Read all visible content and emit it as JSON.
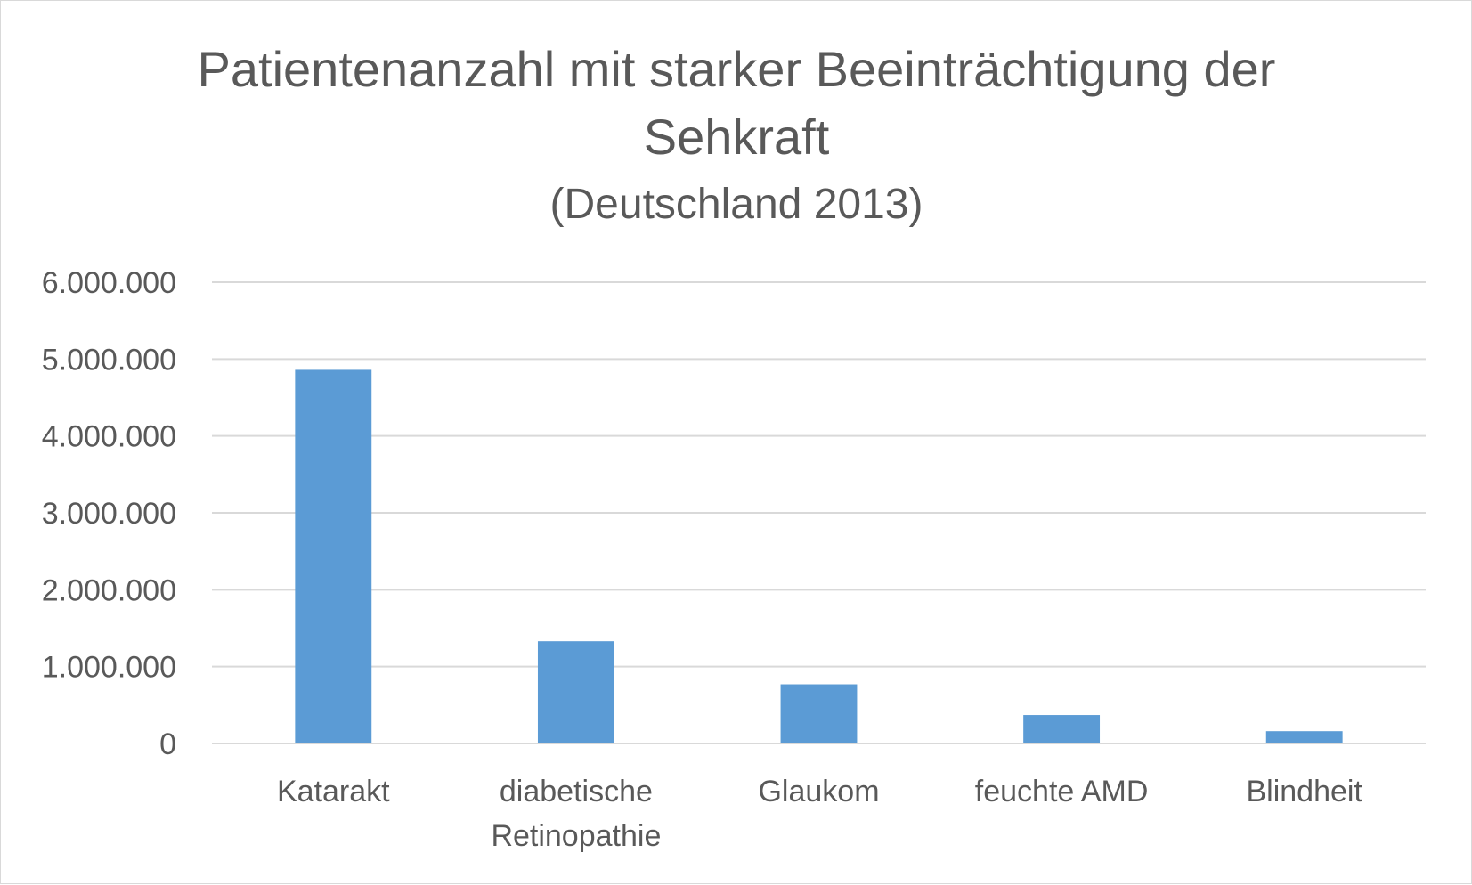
{
  "chart_data": {
    "type": "bar",
    "title_lines": [
      "Patientenanzahl mit starker Beeinträchtigung der",
      "Sehkraft"
    ],
    "subtitle": "(Deutschland 2013)",
    "categories": [
      [
        "Katarakt"
      ],
      [
        "diabetische",
        "Retinopathie"
      ],
      [
        "Glaukom"
      ],
      [
        "feuchte AMD"
      ],
      [
        "Blindheit"
      ]
    ],
    "values": [
      4860000,
      1330000,
      770000,
      370000,
      160000
    ],
    "xlabel": "",
    "ylabel": "",
    "ylim": [
      0,
      6000000
    ],
    "yticks": [
      0,
      1000000,
      2000000,
      3000000,
      4000000,
      5000000,
      6000000
    ],
    "ytick_labels": [
      "0",
      "1.000.000",
      "2.000.000",
      "3.000.000",
      "4.000.000",
      "5.000.000",
      "6.000.000"
    ],
    "grid": true,
    "legend": "none",
    "bar_color": "#5b9bd5"
  }
}
